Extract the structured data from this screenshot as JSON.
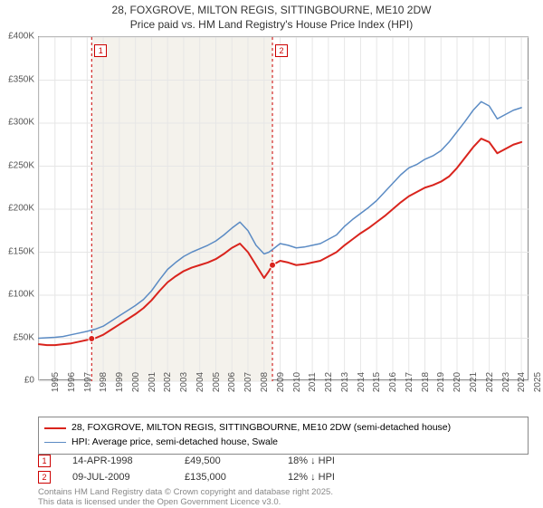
{
  "title": {
    "line1": "28, FOXGROVE, MILTON REGIS, SITTINGBOURNE, ME10 2DW",
    "line2": "Price paid vs. HM Land Registry's House Price Index (HPI)",
    "fontsize": 12,
    "color": "#333333"
  },
  "chart": {
    "type": "line",
    "background_color": "#ffffff",
    "shade_color": "#f4f2ec",
    "grid_color": "#e6e6e6",
    "border_color": "#888888",
    "xlim": [
      1995,
      2025.5
    ],
    "ylim": [
      0,
      400000
    ],
    "ytick_step": 50000,
    "y_ticks": [
      "£0",
      "£50K",
      "£100K",
      "£150K",
      "£200K",
      "£250K",
      "£300K",
      "£350K",
      "£400K"
    ],
    "x_ticks": [
      1995,
      1996,
      1997,
      1998,
      1999,
      2000,
      2001,
      2002,
      2003,
      2004,
      2005,
      2006,
      2007,
      2008,
      2009,
      2010,
      2011,
      2012,
      2013,
      2014,
      2015,
      2016,
      2017,
      2018,
      2019,
      2020,
      2021,
      2022,
      2023,
      2024,
      2025
    ],
    "marker_line_color": "#cc0000",
    "marker_line_dash": "3,3",
    "markers": [
      {
        "num": "1",
        "x": 1998.28,
        "date": "14-APR-1998",
        "price": "£49,500",
        "pct": "18% ↓ HPI"
      },
      {
        "num": "2",
        "x": 2009.52,
        "date": "09-JUL-2009",
        "price": "£135,000",
        "pct": "12% ↓ HPI"
      }
    ],
    "series": [
      {
        "name": "property",
        "label": "28, FOXGROVE, MILTON REGIS, SITTINGBOURNE, ME10 2DW (semi-detached house)",
        "color": "#d9241d",
        "width": 2,
        "points": [
          [
            1995,
            43000
          ],
          [
            1995.5,
            42000
          ],
          [
            1996,
            42000
          ],
          [
            1996.5,
            43000
          ],
          [
            1997,
            44000
          ],
          [
            1997.5,
            46000
          ],
          [
            1998,
            48000
          ],
          [
            1998.28,
            49500
          ],
          [
            1998.5,
            50000
          ],
          [
            1999,
            54000
          ],
          [
            1999.5,
            60000
          ],
          [
            2000,
            66000
          ],
          [
            2000.5,
            72000
          ],
          [
            2001,
            78000
          ],
          [
            2001.5,
            85000
          ],
          [
            2002,
            94000
          ],
          [
            2002.5,
            105000
          ],
          [
            2003,
            115000
          ],
          [
            2003.5,
            122000
          ],
          [
            2004,
            128000
          ],
          [
            2004.5,
            132000
          ],
          [
            2005,
            135000
          ],
          [
            2005.5,
            138000
          ],
          [
            2006,
            142000
          ],
          [
            2006.5,
            148000
          ],
          [
            2007,
            155000
          ],
          [
            2007.5,
            160000
          ],
          [
            2008,
            150000
          ],
          [
            2008.5,
            135000
          ],
          [
            2009,
            120000
          ],
          [
            2009.3,
            128000
          ],
          [
            2009.52,
            135000
          ],
          [
            2010,
            140000
          ],
          [
            2010.5,
            138000
          ],
          [
            2011,
            135000
          ],
          [
            2011.5,
            136000
          ],
          [
            2012,
            138000
          ],
          [
            2012.5,
            140000
          ],
          [
            2013,
            145000
          ],
          [
            2013.5,
            150000
          ],
          [
            2014,
            158000
          ],
          [
            2014.5,
            165000
          ],
          [
            2015,
            172000
          ],
          [
            2015.5,
            178000
          ],
          [
            2016,
            185000
          ],
          [
            2016.5,
            192000
          ],
          [
            2017,
            200000
          ],
          [
            2017.5,
            208000
          ],
          [
            2018,
            215000
          ],
          [
            2018.5,
            220000
          ],
          [
            2019,
            225000
          ],
          [
            2019.5,
            228000
          ],
          [
            2020,
            232000
          ],
          [
            2020.5,
            238000
          ],
          [
            2021,
            248000
          ],
          [
            2021.5,
            260000
          ],
          [
            2022,
            272000
          ],
          [
            2022.5,
            282000
          ],
          [
            2023,
            278000
          ],
          [
            2023.5,
            265000
          ],
          [
            2024,
            270000
          ],
          [
            2024.5,
            275000
          ],
          [
            2025,
            278000
          ]
        ]
      },
      {
        "name": "hpi",
        "label": "HPI: Average price, semi-detached house, Swale",
        "color": "#5b8bc4",
        "width": 1.5,
        "points": [
          [
            1995,
            50000
          ],
          [
            1995.5,
            50500
          ],
          [
            1996,
            51000
          ],
          [
            1996.5,
            52000
          ],
          [
            1997,
            54000
          ],
          [
            1997.5,
            56000
          ],
          [
            1998,
            58000
          ],
          [
            1998.5,
            60500
          ],
          [
            1999,
            64000
          ],
          [
            1999.5,
            70000
          ],
          [
            2000,
            76000
          ],
          [
            2000.5,
            82000
          ],
          [
            2001,
            88000
          ],
          [
            2001.5,
            95000
          ],
          [
            2002,
            105000
          ],
          [
            2002.5,
            118000
          ],
          [
            2003,
            130000
          ],
          [
            2003.5,
            138000
          ],
          [
            2004,
            145000
          ],
          [
            2004.5,
            150000
          ],
          [
            2005,
            154000
          ],
          [
            2005.5,
            158000
          ],
          [
            2006,
            163000
          ],
          [
            2006.5,
            170000
          ],
          [
            2007,
            178000
          ],
          [
            2007.5,
            185000
          ],
          [
            2008,
            175000
          ],
          [
            2008.5,
            158000
          ],
          [
            2009,
            148000
          ],
          [
            2009.3,
            150000
          ],
          [
            2009.52,
            153000
          ],
          [
            2010,
            160000
          ],
          [
            2010.5,
            158000
          ],
          [
            2011,
            155000
          ],
          [
            2011.5,
            156000
          ],
          [
            2012,
            158000
          ],
          [
            2012.5,
            160000
          ],
          [
            2013,
            165000
          ],
          [
            2013.5,
            170000
          ],
          [
            2014,
            180000
          ],
          [
            2014.5,
            188000
          ],
          [
            2015,
            195000
          ],
          [
            2015.5,
            202000
          ],
          [
            2016,
            210000
          ],
          [
            2016.5,
            220000
          ],
          [
            2017,
            230000
          ],
          [
            2017.5,
            240000
          ],
          [
            2018,
            248000
          ],
          [
            2018.5,
            252000
          ],
          [
            2019,
            258000
          ],
          [
            2019.5,
            262000
          ],
          [
            2020,
            268000
          ],
          [
            2020.5,
            278000
          ],
          [
            2021,
            290000
          ],
          [
            2021.5,
            302000
          ],
          [
            2022,
            315000
          ],
          [
            2022.5,
            325000
          ],
          [
            2023,
            320000
          ],
          [
            2023.5,
            305000
          ],
          [
            2024,
            310000
          ],
          [
            2024.5,
            315000
          ],
          [
            2025,
            318000
          ]
        ]
      }
    ],
    "shade_region_x": [
      1998.28,
      2009.52
    ]
  },
  "credits": {
    "line1": "Contains HM Land Registry data © Crown copyright and database right 2025.",
    "line2": "This data is licensed under the Open Government Licence v3.0."
  }
}
